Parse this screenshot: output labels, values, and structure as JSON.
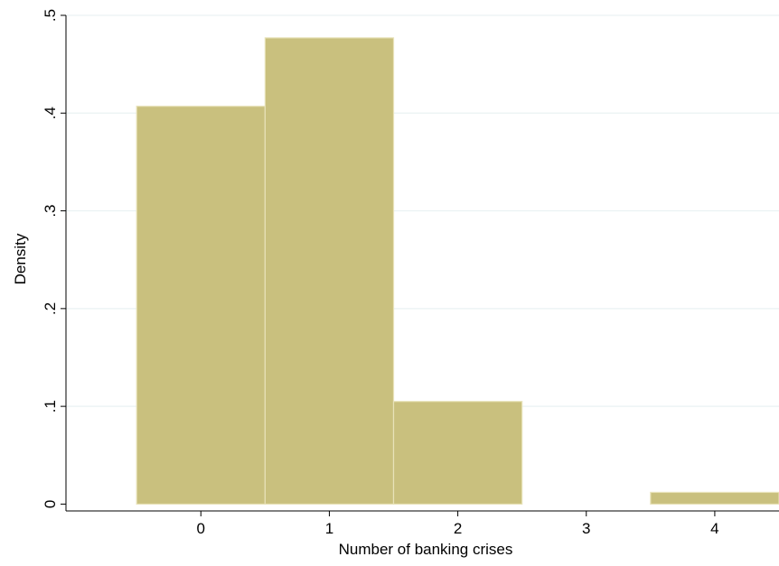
{
  "chart_data": {
    "type": "bar",
    "title": "",
    "xlabel": "Number of banking crises",
    "ylabel": "Density",
    "categories": [
      "0",
      "1",
      "2",
      "3",
      "4"
    ],
    "x": [
      0,
      1,
      2,
      3,
      4
    ],
    "values": [
      0.407,
      0.477,
      0.105,
      0.0,
      0.012
    ],
    "xlim": [
      -1.05,
      4.5
    ],
    "ylim": [
      -0.007,
      0.5
    ],
    "yticks": [
      0,
      0.1,
      0.2,
      0.3,
      0.4,
      0.5
    ],
    "ytick_labels": [
      "0",
      ".1",
      ".2",
      ".3",
      ".4",
      ".5"
    ],
    "xticks": [
      0,
      1,
      2,
      3,
      4
    ],
    "xtick_labels": [
      "0",
      "1",
      "2",
      "3",
      "4"
    ],
    "grid": true,
    "bar_color": "#c9c07e",
    "bar_edge_color": "#e8e2b8",
    "grid_color": "#eaf2f3"
  }
}
